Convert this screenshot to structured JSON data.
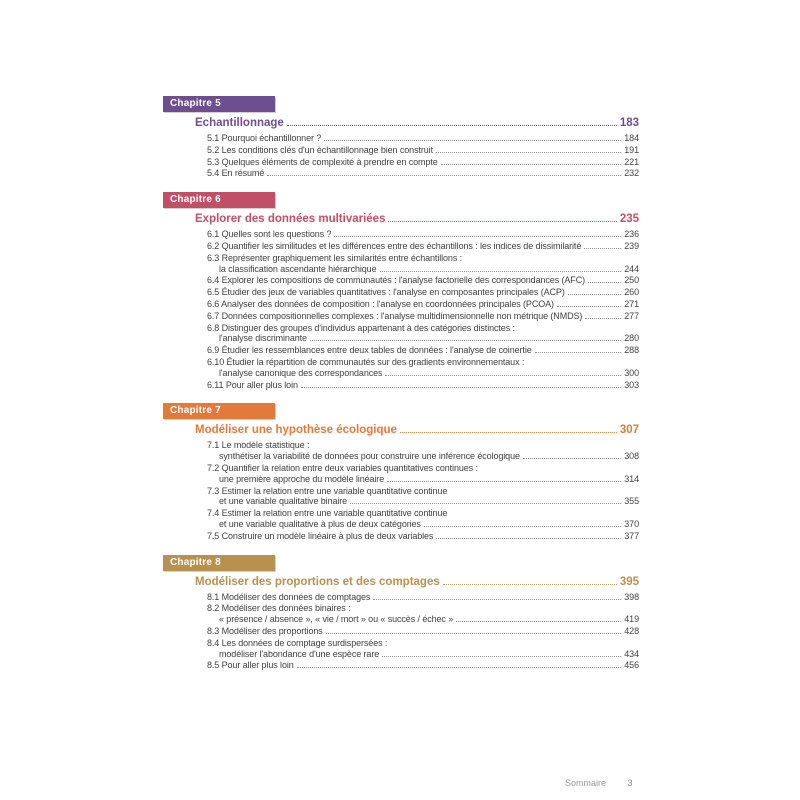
{
  "colors": {
    "chapter5": "#6e4d91",
    "chapter6": "#c14f66",
    "chapter7": "#e27a3c",
    "chapter8": "#b9904f",
    "entry_text": "#404040",
    "leader_gray": "#8f8f8f",
    "footer_gray": "#9a9a9a"
  },
  "footer": {
    "label": "Sommaire",
    "page_number": "3"
  },
  "chapters": [
    {
      "badge": "Chapitre 5",
      "color": "#6e4d91",
      "title": "Échantillonnage",
      "page": "183",
      "entries": [
        {
          "lines": [
            "5.1 Pourquoi échantillonner ?"
          ],
          "page": "184"
        },
        {
          "lines": [
            "5.2 Les conditions clés d'un échantillonnage bien construit"
          ],
          "page": "191"
        },
        {
          "lines": [
            "5.3 Quelques éléments de complexité à prendre en compte"
          ],
          "page": "221"
        },
        {
          "lines": [
            "5.4 En résumé"
          ],
          "page": "232"
        }
      ]
    },
    {
      "badge": "Chapitre 6",
      "color": "#c14f66",
      "title": "Explorer des données multivariées",
      "page": "235",
      "entries": [
        {
          "lines": [
            "6.1 Quelles sont les questions ?"
          ],
          "page": "236"
        },
        {
          "lines": [
            "6.2 Quantifier les similitudes et les différences entre des échantillons : les indices de dissimilarité"
          ],
          "page": "239"
        },
        {
          "lines": [
            "6.3 Représenter graphiquement les similarités entre échantillons :",
            "la classification ascendante hiérarchique"
          ],
          "page": "244"
        },
        {
          "lines": [
            "6.4 Explorer les compositions de communautés : l'analyse factorielle des correspondances (AFC)"
          ],
          "page": "250"
        },
        {
          "lines": [
            "6.5 Étudier des jeux de variables quantitatives : l'analyse en composantes principales (ACP)"
          ],
          "page": "260"
        },
        {
          "lines": [
            "6.6 Analyser des données de composition : l'analyse en coordonnées principales (PCOA)"
          ],
          "page": "271"
        },
        {
          "lines": [
            "6.7 Données compositionnelles complexes : l'analyse multidimensionnelle non métrique (NMDS)"
          ],
          "page": "277"
        },
        {
          "lines": [
            "6.8 Distinguer des groupes d'individus appartenant à des catégories distinctes :",
            "l'analyse discriminante"
          ],
          "page": "280"
        },
        {
          "lines": [
            "6.9 Étudier les ressemblances entre deux tables de données : l'analyse de coinertie"
          ],
          "page": "288"
        },
        {
          "lines": [
            "6.10 Étudier la répartition de communautés sur des gradients environnementaux :",
            "l'analyse canonique des correspondances"
          ],
          "page": "300"
        },
        {
          "lines": [
            "6.11 Pour aller plus loin"
          ],
          "page": "303"
        }
      ]
    },
    {
      "badge": "Chapitre 7",
      "color": "#e27a3c",
      "title": "Modéliser une hypothèse écologique",
      "page": "307",
      "entries": [
        {
          "lines": [
            "7.1 Le modèle statistique :",
            "synthétiser la variabilité de données pour construire une inférence écologique"
          ],
          "page": "308"
        },
        {
          "lines": [
            "7.2 Quantifier la relation entre deux variables quantitatives continues :",
            "une première approche du modèle linéaire"
          ],
          "page": "314"
        },
        {
          "lines": [
            "7.3 Estimer la relation entre une variable quantitative continue",
            "et une variable qualitative binaire"
          ],
          "page": "355"
        },
        {
          "lines": [
            "7.4 Estimer la relation entre une variable quantitative continue",
            "et une variable qualitative à plus de deux catégories"
          ],
          "page": "370"
        },
        {
          "lines": [
            "7.5 Construire un modèle linéaire à plus de deux variables"
          ],
          "page": "377"
        }
      ]
    },
    {
      "badge": "Chapitre 8",
      "color": "#b9904f",
      "title": "Modéliser des proportions et des comptages",
      "page": "395",
      "entries": [
        {
          "lines": [
            "8.1 Modéliser des données de comptages"
          ],
          "page": "398"
        },
        {
          "lines": [
            "8.2 Modéliser des données binaires :",
            "« présence / absence », « vie / mort » ou « succès / échec »"
          ],
          "page": "419"
        },
        {
          "lines": [
            "8.3 Modéliser des proportions"
          ],
          "page": "428"
        },
        {
          "lines": [
            "8.4 Les données de comptage surdispersées :",
            "modéliser l'abondance d'une espèce rare"
          ],
          "page": "434"
        },
        {
          "lines": [
            "8.5 Pour aller plus loin"
          ],
          "page": "456"
        }
      ]
    }
  ]
}
